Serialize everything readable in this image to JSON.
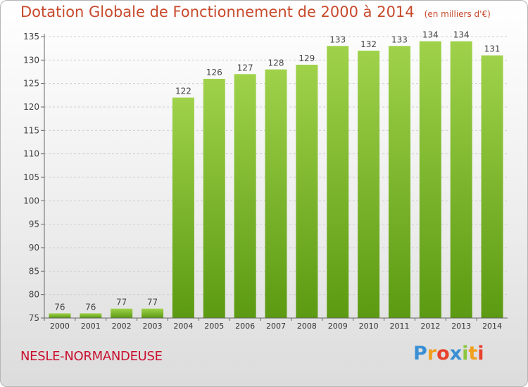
{
  "title": "Dotation Globale de Fonctionnement de 2000 à 2014",
  "unit": "(en milliers d'€)",
  "commune": "NESLE-NORMANDEUSE",
  "logo": {
    "letters": [
      "P",
      "r",
      "o",
      "x",
      "i",
      "t",
      "i"
    ],
    "colors": [
      "#3a8fd4",
      "#f0a01e",
      "#e8412c",
      "#3a8fd4",
      "#8cc63f",
      "#f0a01e",
      "#e8412c"
    ]
  },
  "colors": {
    "bar_top": "#9fd24a",
    "bar_bottom": "#5b9a12",
    "title": "#c84a2c",
    "commune": "#c8102e"
  },
  "chart_data": {
    "type": "bar",
    "title": "Dotation Globale de Fonctionnement de 2000 à 2014",
    "categories": [
      "2000",
      "2001",
      "2002",
      "2003",
      "2004",
      "2005",
      "2006",
      "2007",
      "2008",
      "2009",
      "2010",
      "2011",
      "2012",
      "2013",
      "2014"
    ],
    "values": [
      76,
      76,
      77,
      77,
      122,
      126,
      127,
      128,
      129,
      133,
      132,
      133,
      134,
      134,
      131
    ],
    "labels": [
      "76",
      "76",
      "77",
      "77",
      "122",
      "126",
      "127",
      "128",
      "129",
      "133",
      "132",
      "133",
      "134",
      "134",
      "131"
    ],
    "yticks": [
      75,
      80,
      85,
      90,
      95,
      100,
      105,
      110,
      115,
      120,
      125,
      130,
      135
    ],
    "ylim": [
      75,
      135
    ],
    "grid": true,
    "xlabel": "",
    "ylabel": ""
  }
}
